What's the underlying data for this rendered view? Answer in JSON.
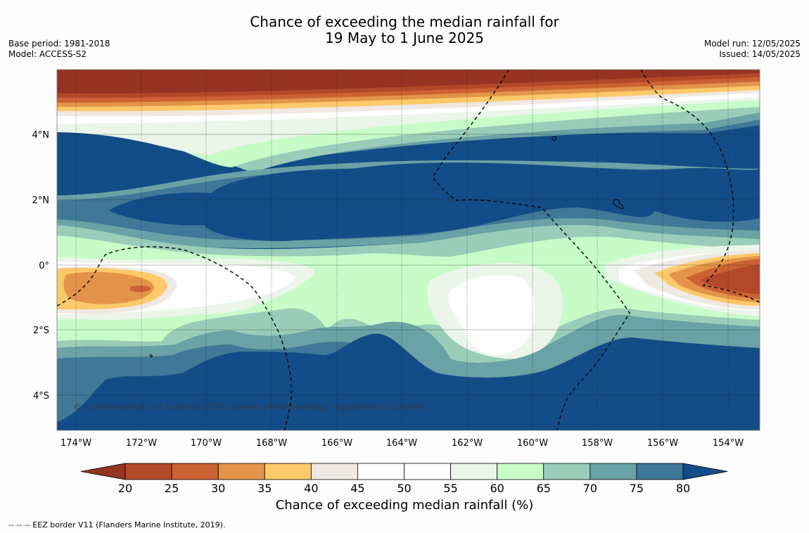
{
  "header": {
    "title_line1": "Chance of exceeding the median rainfall for",
    "title_line2": "19 May to 1 June 2025",
    "base_period": "Base period: 1981-2018",
    "model": "Model: ACCESS-S2",
    "model_run": "Model run: 12/05/2025",
    "issued": "Issued: 14/05/2025"
  },
  "map": {
    "credit": "© Commonwealth of Australia 2025, Bureau of Meteorology, supported by COSPPac",
    "lon_labels": [
      "174°W",
      "172°W",
      "170°W",
      "168°W",
      "166°W",
      "164°W",
      "162°W",
      "160°W",
      "158°W",
      "156°W",
      "154°W"
    ],
    "lat_labels": [
      "4°N",
      "2°N",
      "0°",
      "2°S",
      "4°S"
    ]
  },
  "colorbar": {
    "ticks": [
      "20",
      "25",
      "30",
      "35",
      "40",
      "45",
      "50",
      "55",
      "60",
      "65",
      "70",
      "75",
      "80"
    ],
    "colors": [
      "#973321",
      "#b24a2a",
      "#cc6234",
      "#e3944a",
      "#fdc96b",
      "#efe9e3",
      "#ffffff",
      "#ffffff",
      "#ebf5ea",
      "#c7fcc8",
      "#99cdb9",
      "#6aa2a5",
      "#3f7898",
      "#134d88"
    ],
    "label": "Chance of exceeding median rainfall (%)"
  },
  "footnote": "--  --  -- EEZ border V11 (Flanders Marine Institute, 2019)."
}
